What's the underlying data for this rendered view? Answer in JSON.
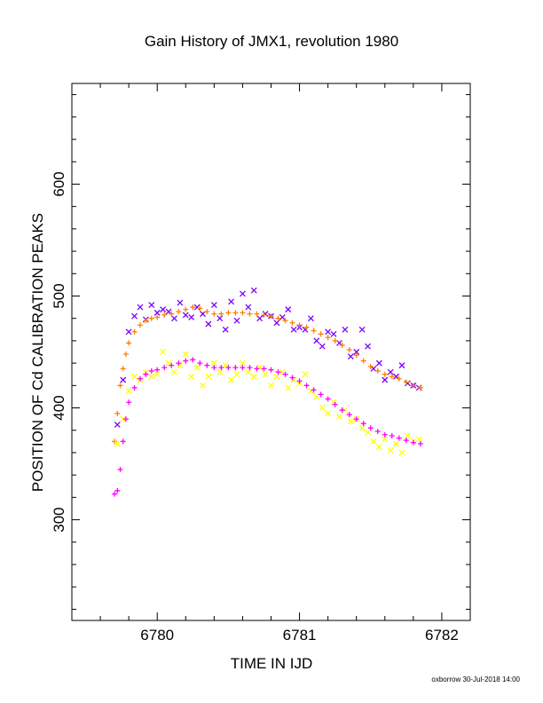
{
  "chart_data": {
    "type": "scatter",
    "title": "Gain History of JMX1, revolution 1980",
    "xlabel": "TIME IN IJD",
    "ylabel": "POSITION OF Cd CALIBRATION PEAKS",
    "xlim": [
      6779.4,
      6782.2
    ],
    "ylim": [
      210,
      690
    ],
    "x_ticks": [
      6780,
      6781,
      6782
    ],
    "x_tick_labels": [
      "6780",
      "6781",
      "6782"
    ],
    "y_ticks": [
      300,
      400,
      500,
      600
    ],
    "y_tick_labels": [
      "300",
      "400",
      "500",
      "600"
    ],
    "grid": false,
    "legend": "none",
    "series": [
      {
        "color": "#7a00ff",
        "marker": "x",
        "x": [
          6779.72,
          6779.76,
          6779.8,
          6779.84,
          6779.88,
          6779.92,
          6779.96,
          6780.0,
          6780.04,
          6780.08,
          6780.12,
          6780.16,
          6780.2,
          6780.24,
          6780.28,
          6780.32,
          6780.36,
          6780.4,
          6780.44,
          6780.48,
          6780.52,
          6780.56,
          6780.6,
          6780.64,
          6780.68,
          6780.72,
          6780.76,
          6780.8,
          6780.84,
          6780.88,
          6780.92,
          6780.96,
          6781.0,
          6781.04,
          6781.08,
          6781.12,
          6781.16,
          6781.2,
          6781.24,
          6781.28,
          6781.32,
          6781.36,
          6781.4,
          6781.44,
          6781.48,
          6781.52,
          6781.56,
          6781.6,
          6781.64,
          6781.68,
          6781.72,
          6781.76,
          6781.8,
          6781.84
        ],
        "y": [
          385,
          425,
          468,
          482,
          490,
          479,
          492,
          485,
          488,
          486,
          480,
          494,
          483,
          481,
          490,
          484,
          475,
          492,
          480,
          470,
          495,
          478,
          502,
          490,
          505,
          480,
          484,
          482,
          476,
          481,
          488,
          470,
          472,
          470,
          480,
          460,
          455,
          468,
          466,
          458,
          470,
          446,
          450,
          470,
          455,
          435,
          440,
          425,
          432,
          428,
          438,
          422,
          420,
          418
        ]
      },
      {
        "color": "#ff8000",
        "marker": "+",
        "x": [
          6779.7,
          6779.72,
          6779.74,
          6779.76,
          6779.78,
          6779.8,
          6779.84,
          6779.88,
          6779.92,
          6779.96,
          6780.0,
          6780.05,
          6780.1,
          6780.15,
          6780.2,
          6780.25,
          6780.3,
          6780.35,
          6780.4,
          6780.45,
          6780.5,
          6780.55,
          6780.6,
          6780.65,
          6780.7,
          6780.75,
          6780.8,
          6780.85,
          6780.9,
          6780.95,
          6781.0,
          6781.05,
          6781.1,
          6781.15,
          6781.2,
          6781.25,
          6781.3,
          6781.35,
          6781.4,
          6781.45,
          6781.5,
          6781.55,
          6781.6,
          6781.65,
          6781.7,
          6781.75,
          6781.8,
          6781.85
        ],
        "y": [
          370,
          395,
          420,
          435,
          448,
          458,
          468,
          474,
          478,
          480,
          481,
          483,
          484,
          486,
          488,
          490,
          489,
          486,
          484,
          484,
          485,
          485,
          485,
          484,
          484,
          483,
          482,
          480,
          478,
          476,
          474,
          472,
          469,
          466,
          463,
          460,
          456,
          452,
          447,
          442,
          437,
          433,
          430,
          428,
          426,
          423,
          420,
          418
        ]
      },
      {
        "color": "#ffff00",
        "marker": "x",
        "x": [
          6779.72,
          6779.76,
          6779.8,
          6779.84,
          6779.88,
          6779.92,
          6779.96,
          6780.0,
          6780.04,
          6780.08,
          6780.12,
          6780.16,
          6780.2,
          6780.24,
          6780.28,
          6780.32,
          6780.36,
          6780.4,
          6780.44,
          6780.48,
          6780.52,
          6780.56,
          6780.6,
          6780.64,
          6780.68,
          6780.72,
          6780.76,
          6780.8,
          6780.84,
          6780.88,
          6780.92,
          6780.96,
          6781.0,
          6781.04,
          6781.08,
          6781.12,
          6781.16,
          6781.2,
          6781.24,
          6781.28,
          6781.32,
          6781.36,
          6781.4,
          6781.44,
          6781.48,
          6781.52,
          6781.56,
          6781.6,
          6781.64,
          6781.68,
          6781.72,
          6781.76,
          6781.8,
          6781.84
        ],
        "y": [
          368,
          390,
          415,
          428,
          425,
          432,
          428,
          430,
          450,
          440,
          432,
          438,
          448,
          428,
          436,
          420,
          428,
          440,
          432,
          438,
          425,
          430,
          440,
          432,
          428,
          436,
          430,
          420,
          428,
          432,
          418,
          425,
          422,
          430,
          415,
          410,
          400,
          395,
          405,
          392,
          398,
          388,
          390,
          382,
          378,
          370,
          365,
          372,
          362,
          368,
          360,
          375,
          370,
          372
        ]
      },
      {
        "color": "#ff00ff",
        "marker": "+",
        "x": [
          6779.7,
          6779.72,
          6779.74,
          6779.76,
          6779.78,
          6779.8,
          6779.84,
          6779.88,
          6779.92,
          6779.96,
          6780.0,
          6780.05,
          6780.1,
          6780.15,
          6780.2,
          6780.25,
          6780.3,
          6780.35,
          6780.4,
          6780.45,
          6780.5,
          6780.55,
          6780.6,
          6780.65,
          6780.7,
          6780.75,
          6780.8,
          6780.85,
          6780.9,
          6780.95,
          6781.0,
          6781.05,
          6781.1,
          6781.15,
          6781.2,
          6781.25,
          6781.3,
          6781.35,
          6781.4,
          6781.45,
          6781.5,
          6781.55,
          6781.6,
          6781.65,
          6781.7,
          6781.75,
          6781.8,
          6781.85
        ],
        "y": [
          323,
          326,
          345,
          370,
          390,
          405,
          418,
          426,
          430,
          433,
          434,
          436,
          438,
          440,
          442,
          443,
          440,
          438,
          436,
          436,
          436,
          436,
          436,
          436,
          435,
          435,
          434,
          432,
          430,
          427,
          424,
          420,
          416,
          412,
          408,
          403,
          398,
          394,
          390,
          386,
          382,
          379,
          376,
          375,
          373,
          371,
          369,
          368
        ]
      }
    ]
  },
  "footer": {
    "text": "oxborrow 30-Jul-2018 14:00"
  }
}
